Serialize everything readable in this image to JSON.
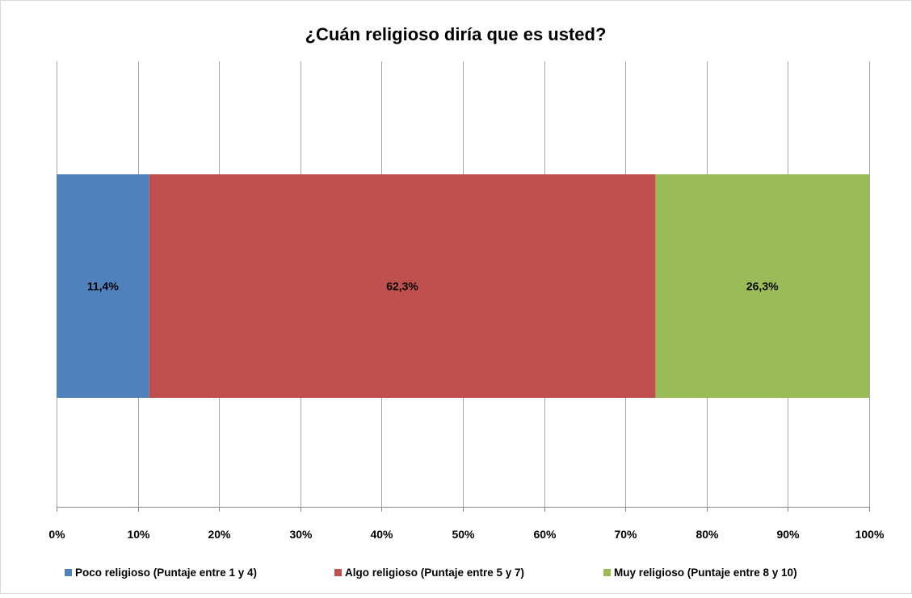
{
  "chart_data": {
    "type": "bar",
    "orientation": "horizontal",
    "stacked": "percent",
    "title": "¿Cuán religioso diría que es usted?",
    "xlabel": "",
    "ylabel": "",
    "xlim": [
      0,
      100
    ],
    "x_ticks": [
      "0%",
      "10%",
      "20%",
      "30%",
      "40%",
      "50%",
      "60%",
      "70%",
      "80%",
      "90%",
      "100%"
    ],
    "grid": true,
    "legend_position": "bottom",
    "series": [
      {
        "name": "Poco religioso (Puntaje entre 1 y 4)",
        "values": [
          11.4
        ],
        "label": "11,4%",
        "color": "#4F81BD"
      },
      {
        "name": "Algo religioso (Puntaje entre 5 y 7)",
        "values": [
          62.3
        ],
        "label": "62,3%",
        "color": "#C0504D"
      },
      {
        "name": "Muy religioso (Puntaje entre 8 y 10)",
        "values": [
          26.3
        ],
        "label": "26,3%",
        "color": "#9BBB59"
      }
    ]
  }
}
